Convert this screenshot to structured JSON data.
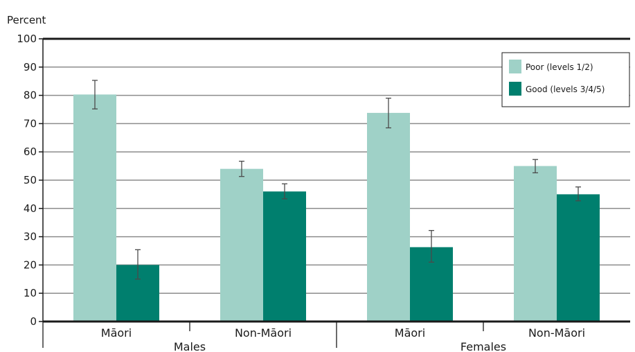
{
  "chart_data": {
    "type": "bar",
    "ylabel": "Percent",
    "ylim": [
      0,
      100
    ],
    "yticks": [
      0,
      10,
      20,
      30,
      40,
      50,
      60,
      70,
      80,
      90,
      100
    ],
    "grid": true,
    "legend_position": "top-right",
    "groups": [
      {
        "label": "Males",
        "categories": [
          "Māori",
          "Non-Māori"
        ]
      },
      {
        "label": "Females",
        "categories": [
          "Māori",
          "Non-Māori"
        ]
      }
    ],
    "categories": [
      "Māori",
      "Non-Māori",
      "Māori",
      "Non-Māori"
    ],
    "series": [
      {
        "name": "Poor (levels 1/2)",
        "color": "#9fd1c7",
        "values": [
          80.3,
          54.0,
          73.8,
          55.0
        ],
        "error_low": [
          75.2,
          51.3,
          68.5,
          52.6
        ],
        "error_high": [
          85.3,
          56.7,
          79.0,
          57.3
        ]
      },
      {
        "name": "Good (levels 3/4/5)",
        "color": "#007f6e",
        "values": [
          20.0,
          46.0,
          26.3,
          45.0
        ],
        "error_low": [
          15.0,
          43.4,
          21.0,
          42.7
        ],
        "error_high": [
          25.4,
          48.7,
          32.2,
          47.6
        ]
      }
    ]
  }
}
